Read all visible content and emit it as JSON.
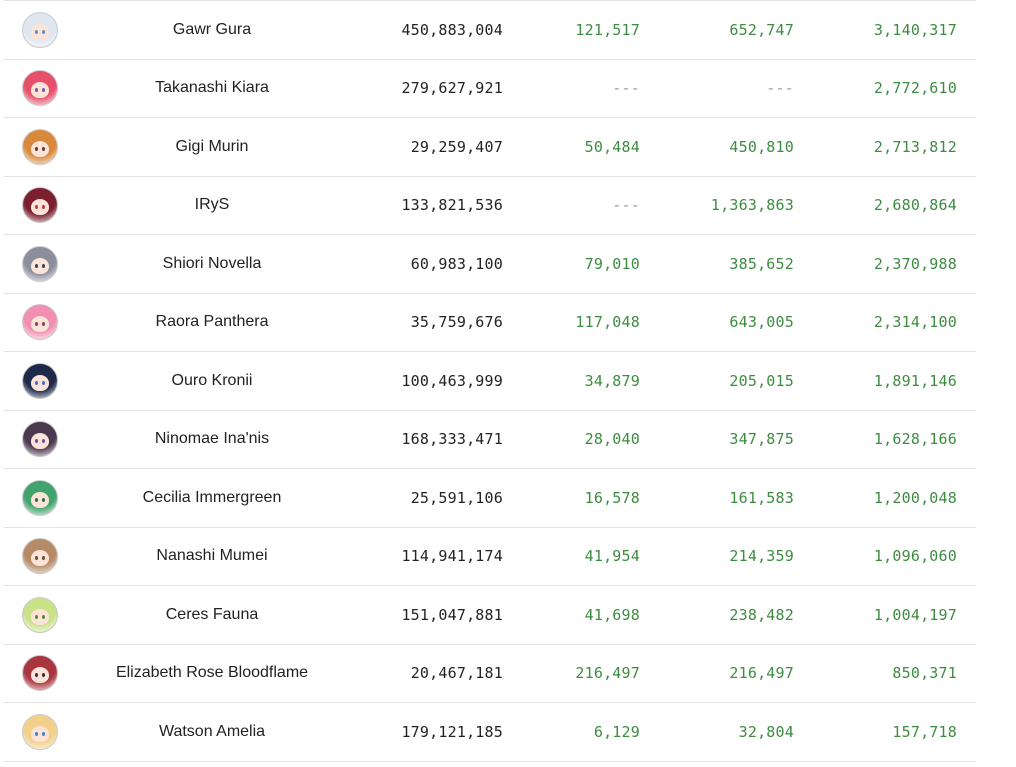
{
  "colors": {
    "positive": "#3d8c40",
    "neutral": "#222222",
    "muted": "#9a9a9a"
  },
  "rows": [
    {
      "name": "Gawr Gura",
      "total": "450,883,004",
      "c2": "121,517",
      "c3": "652,747",
      "c4": "3,140,317",
      "avatar_hair": "#dfe6ef",
      "avatar_eye": "#5a8fd6"
    },
    {
      "name": "Takanashi Kiara",
      "total": "279,627,921",
      "c2": "---",
      "c3": "---",
      "c4": "2,772,610",
      "avatar_hair": "#e7506b",
      "avatar_eye": "#7b4fb0"
    },
    {
      "name": "Gigi Murin",
      "total": "29,259,407",
      "c2": "50,484",
      "c3": "450,810",
      "c4": "2,713,812",
      "avatar_hair": "#d9893b",
      "avatar_eye": "#5b3a2a"
    },
    {
      "name": "IRyS",
      "total": "133,821,536",
      "c2": "---",
      "c3": "1,363,863",
      "c4": "2,680,864",
      "avatar_hair": "#7a1f2e",
      "avatar_eye": "#c9304b"
    },
    {
      "name": "Shiori Novella",
      "total": "60,983,100",
      "c2": "79,010",
      "c3": "385,652",
      "c4": "2,370,988",
      "avatar_hair": "#8b8f9c",
      "avatar_eye": "#3b3f56"
    },
    {
      "name": "Raora Panthera",
      "total": "35,759,676",
      "c2": "117,048",
      "c3": "643,005",
      "c4": "2,314,100",
      "avatar_hair": "#f08fb0",
      "avatar_eye": "#8a3f63"
    },
    {
      "name": "Ouro Kronii",
      "total": "100,463,999",
      "c2": "34,879",
      "c3": "205,015",
      "c4": "1,891,146",
      "avatar_hair": "#1f2a4a",
      "avatar_eye": "#3b6bd6"
    },
    {
      "name": "Ninomae Ina'nis",
      "total": "168,333,471",
      "c2": "28,040",
      "c3": "347,875",
      "c4": "1,628,166",
      "avatar_hair": "#4b3a4f",
      "avatar_eye": "#6f4aa6"
    },
    {
      "name": "Cecilia Immergreen",
      "total": "25,591,106",
      "c2": "16,578",
      "c3": "161,583",
      "c4": "1,200,048",
      "avatar_hair": "#3fa36b",
      "avatar_eye": "#2e6b4a"
    },
    {
      "name": "Nanashi Mumei",
      "total": "114,941,174",
      "c2": "41,954",
      "c3": "214,359",
      "c4": "1,096,060",
      "avatar_hair": "#b58a66",
      "avatar_eye": "#6b4a33"
    },
    {
      "name": "Ceres Fauna",
      "total": "151,047,881",
      "c2": "41,698",
      "c3": "238,482",
      "c4": "1,004,197",
      "avatar_hair": "#c9e28a",
      "avatar_eye": "#4f8f3a"
    },
    {
      "name": "Elizabeth Rose Bloodflame",
      "total": "20,467,181",
      "c2": "216,497",
      "c3": "216,497",
      "c4": "850,371",
      "avatar_hair": "#a9353f",
      "avatar_eye": "#3b2a3f"
    },
    {
      "name": "Watson Amelia",
      "total": "179,121,185",
      "c2": "6,129",
      "c3": "32,804",
      "c4": "157,718",
      "avatar_hair": "#f2d08a",
      "avatar_eye": "#4a7fc0"
    }
  ]
}
